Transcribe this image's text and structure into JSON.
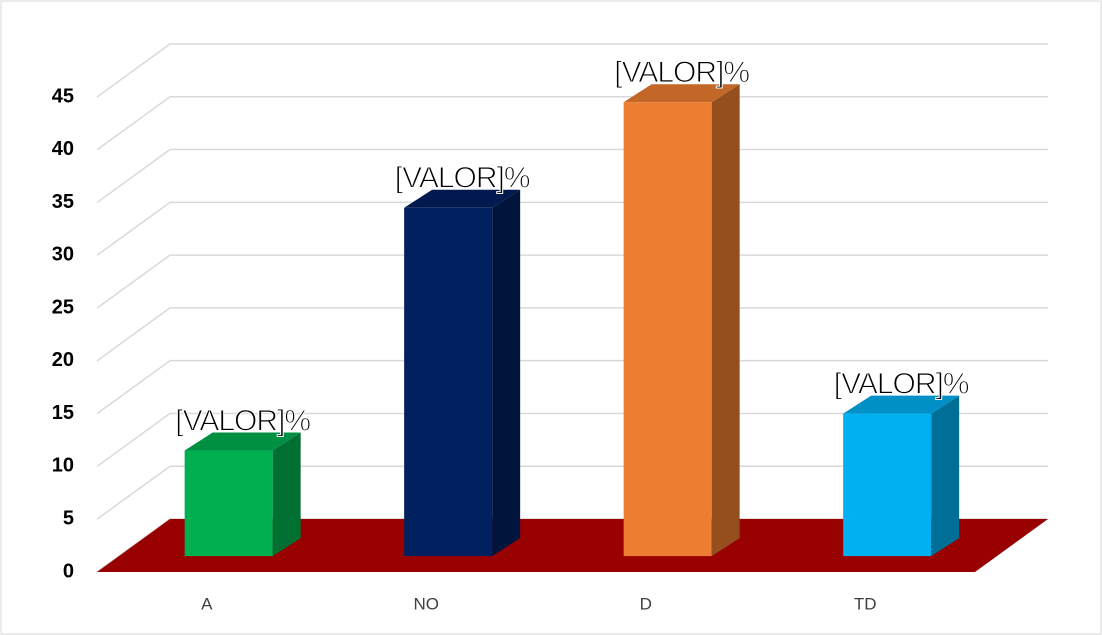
{
  "chart_data": {
    "type": "bar3d",
    "categories": [
      "A",
      "NO",
      "D",
      "TD"
    ],
    "values": [
      10,
      33,
      43,
      13.5
    ],
    "value_labels": [
      "[VALOR]%",
      "[VALOR]%",
      "[VALOR]%",
      "[VALOR]%"
    ],
    "colors": [
      "#00b050",
      "#002060",
      "#ed7d31",
      "#00b0f0"
    ],
    "floor_color": "#990000",
    "ylim": [
      0,
      45
    ],
    "yticks": [
      0,
      5,
      10,
      15,
      20,
      25,
      30,
      35,
      40,
      45
    ],
    "grid": true
  }
}
